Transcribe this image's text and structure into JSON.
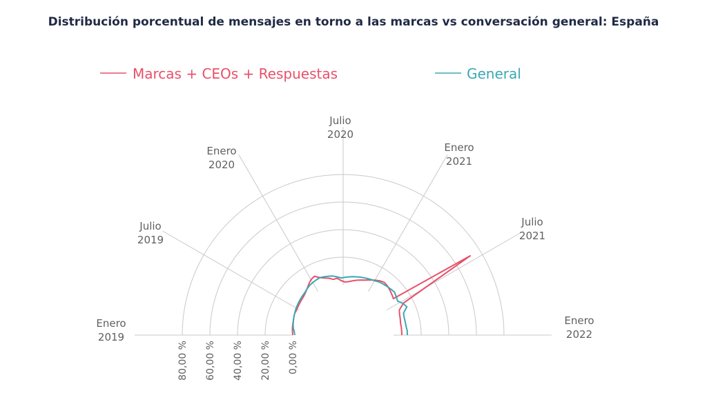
{
  "chart_data": {
    "type": "radar",
    "title": "Distribución porcentual de mensajes en torno a las marcas vs conversación general: España",
    "radial_axis": {
      "ticks": [
        "0,00 %",
        "20,00 %",
        "40,00 %",
        "60,00 %",
        "80,00 %"
      ],
      "range": [
        0,
        80
      ]
    },
    "angular_labels": [
      {
        "line1": "Enero",
        "line2": "2019"
      },
      {
        "line1": "Julio",
        "line2": "2019"
      },
      {
        "line1": "Enero",
        "line2": "2020"
      },
      {
        "line1": "Julio",
        "line2": "2020"
      },
      {
        "line1": "Enero",
        "line2": "2021"
      },
      {
        "line1": "Julio",
        "line2": "2021"
      },
      {
        "line1": "Enero",
        "line2": "2022"
      }
    ],
    "series": [
      {
        "name": "Marcas + CEOs + Respuestas",
        "color": "#e8506a",
        "values": [
          0.0,
          0.3,
          0.6,
          0.8,
          1.0,
          1.5,
          2.0,
          1.8,
          2.2,
          2.5,
          3.0,
          3.5,
          4.5,
          6.0,
          8.0,
          10.0,
          11.0,
          8.5,
          7.0,
          6.0,
          4.5,
          5.0,
          3.0,
          2.0,
          2.5,
          3.5,
          4.5,
          5.5,
          6.5,
          8.0,
          9.5,
          11.0,
          12.0,
          11.5,
          10.5,
          9.5,
          8.5,
          72.0,
          13.0,
          8.0,
          7.0,
          6.5,
          6.0,
          6.0,
          6.0,
          6.0
        ]
      },
      {
        "name": "General",
        "color": "#3aa8b3",
        "values": [
          -1.5,
          -1.0,
          0.0,
          0.5,
          1.0,
          1.5,
          2.0,
          2.5,
          3.0,
          3.5,
          4.0,
          4.5,
          5.0,
          6.0,
          7.0,
          7.5,
          8.0,
          8.5,
          8.0,
          7.5,
          7.0,
          6.0,
          5.0,
          5.5,
          6.0,
          6.5,
          7.0,
          7.5,
          8.0,
          8.5,
          9.0,
          10.0,
          10.5,
          11.0,
          11.5,
          12.0,
          11.0,
          10.0,
          12.5,
          14.0,
          10.0,
          9.5,
          9.5,
          9.5,
          10.0,
          10.0
        ]
      }
    ],
    "legend": "top"
  }
}
